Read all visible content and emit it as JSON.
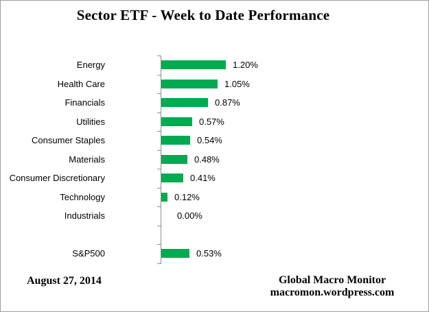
{
  "title": "Sector ETF - Week to Date Performance",
  "footer": {
    "date": "August 27, 2014",
    "credit_line1": "Global Macro Monitor",
    "credit_line2": "macromon.wordpress.com"
  },
  "chart_data": {
    "type": "bar",
    "orientation": "horizontal",
    "title": "Sector ETF - Week to Date Performance",
    "categories": [
      "Energy",
      "Health Care",
      "Financials",
      "Utilities",
      "Consumer Staples",
      "Materials",
      "Consumer Discretionary",
      "Technology",
      "Industrials",
      "",
      "S&P500"
    ],
    "values": [
      1.2,
      1.05,
      0.87,
      0.57,
      0.54,
      0.48,
      0.41,
      0.12,
      0.0,
      null,
      0.53
    ],
    "value_labels": [
      "1.20%",
      "1.05%",
      "0.87%",
      "0.57%",
      "0.54%",
      "0.48%",
      "0.41%",
      "0.12%",
      "0.00%",
      "",
      "0.53%"
    ],
    "unit": "%",
    "xlim": [
      0,
      1.4
    ],
    "grid": false,
    "legend": false,
    "bar_color": "#00aa50",
    "axis_color": "#8c8c8c",
    "text_color": "#000000"
  }
}
